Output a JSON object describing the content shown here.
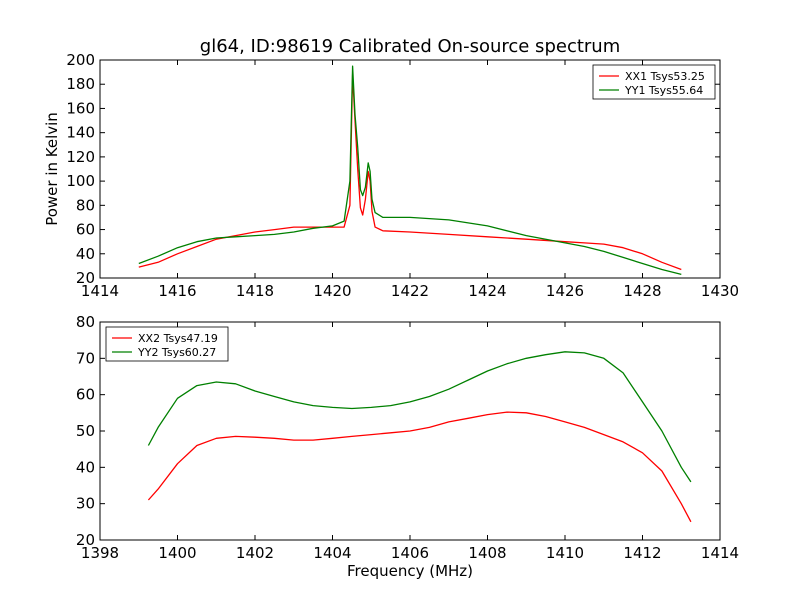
{
  "title": "gl64, ID:98619 Calibrated On-source spectrum",
  "ylabel": "Power in Kelvin",
  "xlabel": "Frequency (MHz)",
  "chart_data": [
    {
      "type": "line",
      "xlim": [
        1414,
        1430
      ],
      "ylim": [
        20,
        200
      ],
      "xticks": [
        1414,
        1416,
        1418,
        1420,
        1422,
        1424,
        1426,
        1428,
        1430
      ],
      "yticks": [
        20,
        40,
        60,
        80,
        100,
        120,
        140,
        160,
        180,
        200
      ],
      "legend_position": "top-right",
      "series": [
        {
          "name": "XX1 Tsys53.25",
          "color": "#ff0000",
          "points": [
            [
              1415.0,
              29
            ],
            [
              1415.5,
              33
            ],
            [
              1416.0,
              40
            ],
            [
              1416.5,
              46
            ],
            [
              1417.0,
              52
            ],
            [
              1417.5,
              55
            ],
            [
              1418.0,
              58
            ],
            [
              1418.5,
              60
            ],
            [
              1419.0,
              62
            ],
            [
              1419.5,
              62
            ],
            [
              1420.0,
              62
            ],
            [
              1420.3,
              62
            ],
            [
              1420.45,
              80
            ],
            [
              1420.52,
              188
            ],
            [
              1420.58,
              150
            ],
            [
              1420.65,
              110
            ],
            [
              1420.72,
              78
            ],
            [
              1420.78,
              72
            ],
            [
              1420.85,
              85
            ],
            [
              1420.92,
              108
            ],
            [
              1420.97,
              100
            ],
            [
              1421.02,
              75
            ],
            [
              1421.1,
              62
            ],
            [
              1421.3,
              59
            ],
            [
              1422.0,
              58
            ],
            [
              1423.0,
              56
            ],
            [
              1424.0,
              54
            ],
            [
              1425.0,
              52
            ],
            [
              1426.0,
              50
            ],
            [
              1426.5,
              49
            ],
            [
              1427.0,
              48
            ],
            [
              1427.5,
              45
            ],
            [
              1428.0,
              40
            ],
            [
              1428.5,
              33
            ],
            [
              1429.0,
              27
            ]
          ]
        },
        {
          "name": "YY1 Tsys55.64",
          "color": "#008000",
          "points": [
            [
              1415.0,
              32
            ],
            [
              1415.5,
              38
            ],
            [
              1416.0,
              45
            ],
            [
              1416.5,
              50
            ],
            [
              1417.0,
              53
            ],
            [
              1417.5,
              54
            ],
            [
              1418.0,
              55
            ],
            [
              1418.5,
              56
            ],
            [
              1419.0,
              58
            ],
            [
              1419.5,
              61
            ],
            [
              1420.0,
              63
            ],
            [
              1420.3,
              67
            ],
            [
              1420.45,
              100
            ],
            [
              1420.52,
              195
            ],
            [
              1420.58,
              155
            ],
            [
              1420.65,
              128
            ],
            [
              1420.72,
              93
            ],
            [
              1420.78,
              88
            ],
            [
              1420.85,
              95
            ],
            [
              1420.92,
              115
            ],
            [
              1420.97,
              108
            ],
            [
              1421.02,
              85
            ],
            [
              1421.1,
              74
            ],
            [
              1421.3,
              70
            ],
            [
              1422.0,
              70
            ],
            [
              1423.0,
              68
            ],
            [
              1424.0,
              63
            ],
            [
              1425.0,
              55
            ],
            [
              1426.0,
              49
            ],
            [
              1426.5,
              46
            ],
            [
              1427.0,
              42
            ],
            [
              1427.5,
              37
            ],
            [
              1428.0,
              32
            ],
            [
              1428.5,
              27
            ],
            [
              1429.0,
              23
            ]
          ]
        }
      ]
    },
    {
      "type": "line",
      "xlim": [
        1398,
        1414
      ],
      "ylim": [
        20,
        80
      ],
      "xticks": [
        1398,
        1400,
        1402,
        1404,
        1406,
        1408,
        1410,
        1412,
        1414
      ],
      "yticks": [
        20,
        30,
        40,
        50,
        60,
        70,
        80
      ],
      "legend_position": "top-left",
      "series": [
        {
          "name": "XX2 Tsys47.19",
          "color": "#ff0000",
          "points": [
            [
              1399.25,
              31
            ],
            [
              1399.5,
              34
            ],
            [
              1400.0,
              41
            ],
            [
              1400.5,
              46
            ],
            [
              1401.0,
              48
            ],
            [
              1401.5,
              48.5
            ],
            [
              1402.0,
              48.3
            ],
            [
              1402.5,
              48
            ],
            [
              1403.0,
              47.5
            ],
            [
              1403.5,
              47.5
            ],
            [
              1404.0,
              48
            ],
            [
              1404.5,
              48.5
            ],
            [
              1405.0,
              49
            ],
            [
              1405.5,
              49.5
            ],
            [
              1406.0,
              50
            ],
            [
              1406.5,
              51
            ],
            [
              1407.0,
              52.5
            ],
            [
              1407.5,
              53.5
            ],
            [
              1408.0,
              54.5
            ],
            [
              1408.5,
              55.2
            ],
            [
              1409.0,
              55
            ],
            [
              1409.5,
              54
            ],
            [
              1410.0,
              52.5
            ],
            [
              1410.5,
              51
            ],
            [
              1411.0,
              49
            ],
            [
              1411.5,
              47
            ],
            [
              1412.0,
              44
            ],
            [
              1412.5,
              39
            ],
            [
              1413.0,
              30
            ],
            [
              1413.25,
              25
            ]
          ]
        },
        {
          "name": "YY2 Tsys60.27",
          "color": "#008000",
          "points": [
            [
              1399.25,
              46
            ],
            [
              1399.5,
              51
            ],
            [
              1400.0,
              59
            ],
            [
              1400.5,
              62.5
            ],
            [
              1401.0,
              63.5
            ],
            [
              1401.5,
              63
            ],
            [
              1402.0,
              61
            ],
            [
              1402.5,
              59.5
            ],
            [
              1403.0,
              58
            ],
            [
              1403.5,
              57
            ],
            [
              1404.0,
              56.5
            ],
            [
              1404.5,
              56.2
            ],
            [
              1405.0,
              56.5
            ],
            [
              1405.5,
              57
            ],
            [
              1406.0,
              58
            ],
            [
              1406.5,
              59.5
            ],
            [
              1407.0,
              61.5
            ],
            [
              1407.5,
              64
            ],
            [
              1408.0,
              66.5
            ],
            [
              1408.5,
              68.5
            ],
            [
              1409.0,
              70
            ],
            [
              1409.5,
              71
            ],
            [
              1410.0,
              71.8
            ],
            [
              1410.5,
              71.5
            ],
            [
              1411.0,
              70
            ],
            [
              1411.5,
              66
            ],
            [
              1412.0,
              58
            ],
            [
              1412.5,
              50
            ],
            [
              1413.0,
              40
            ],
            [
              1413.25,
              36
            ]
          ]
        }
      ]
    }
  ]
}
